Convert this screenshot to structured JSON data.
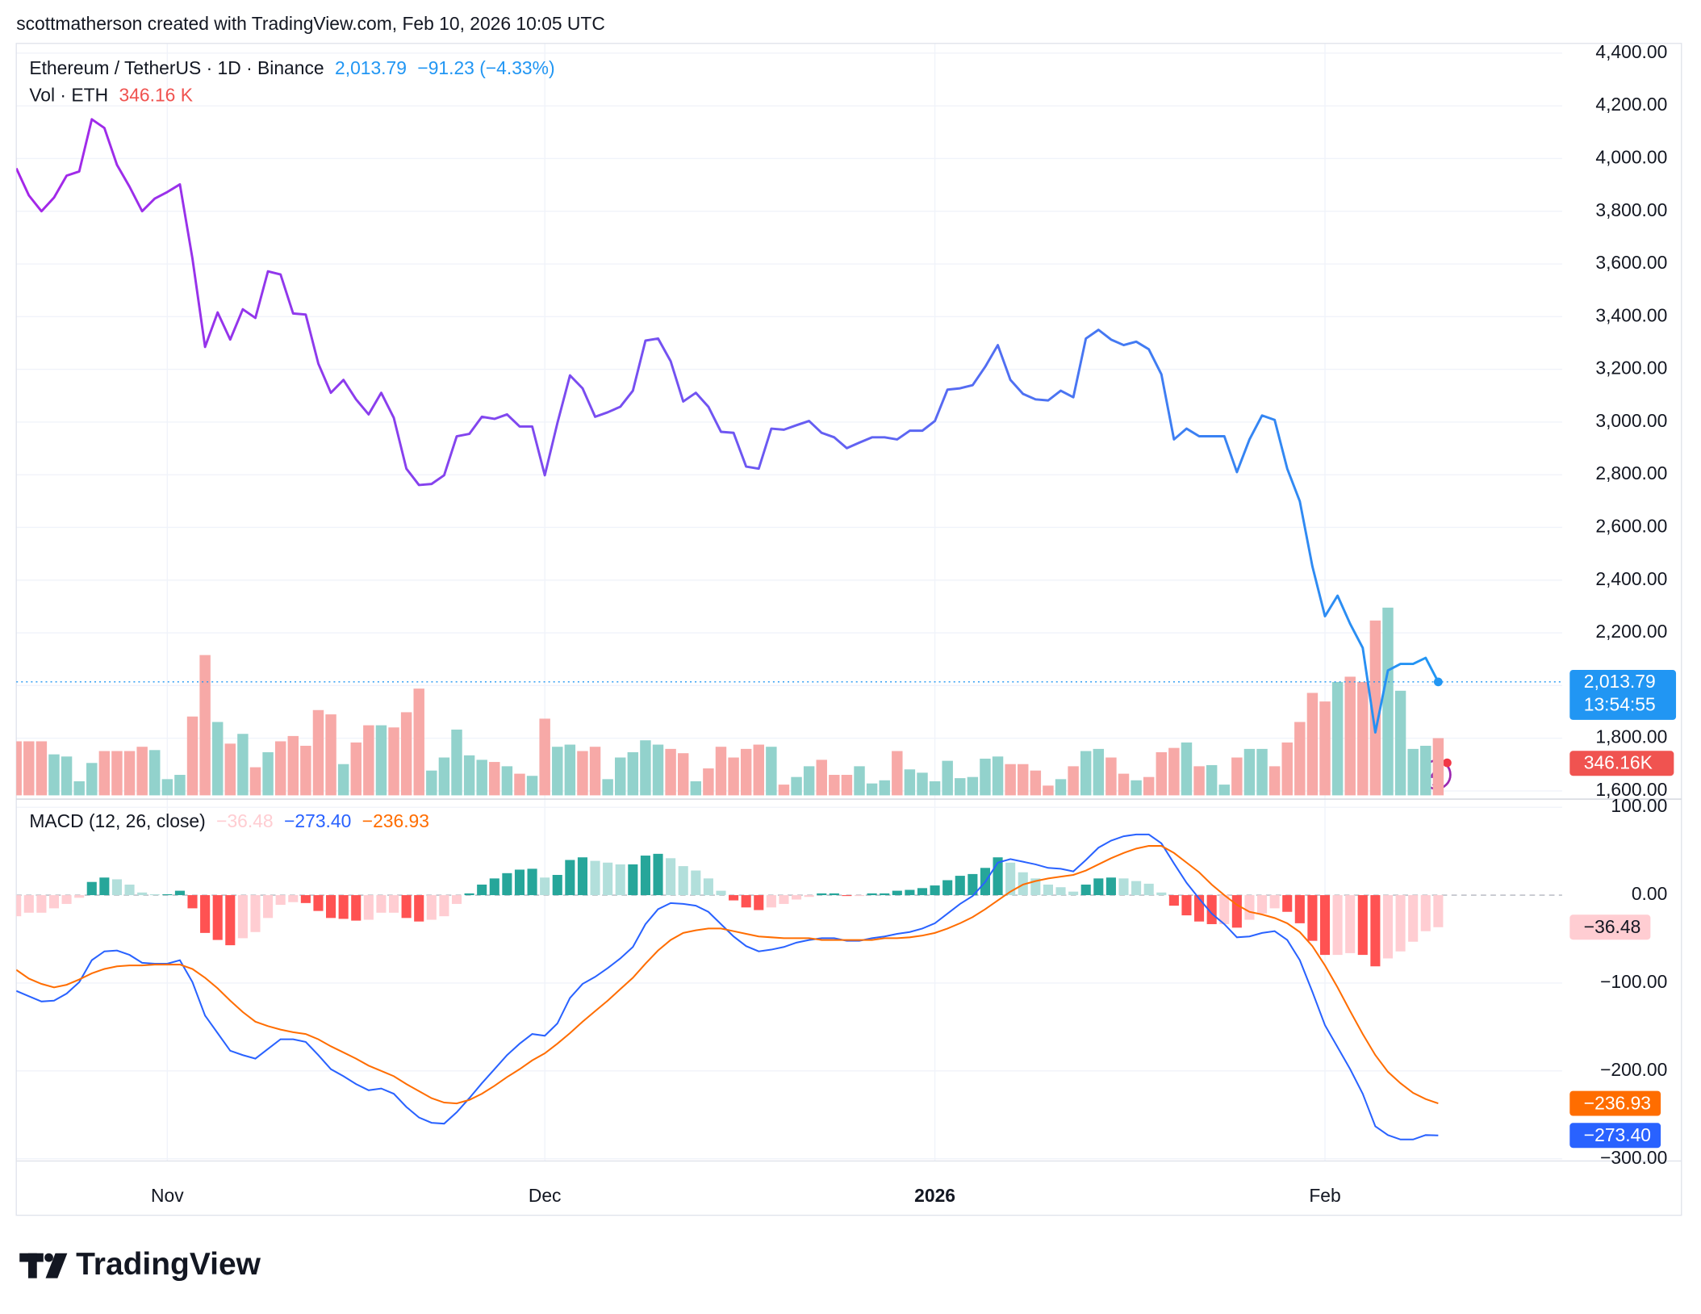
{
  "header": {
    "credit": "scottmatherson created with TradingView.com, Feb 10, 2026 10:05 UTC"
  },
  "footer": {
    "brand": "TradingView"
  },
  "chart_data": [
    {
      "type": "line",
      "change_label": "−91.23 (−4.33%)",
      "countdown": "13:54:55",
      "grid": true,
      "ylim": [
        1575,
        4437
      ],
      "yticks": [
        {
          "value": 1600,
          "label": "1,600.00"
        },
        {
          "value": 1800,
          "label": "1,800.00"
        },
        {
          "value": 2000,
          "label": "2,000.00"
        },
        {
          "value": 2200,
          "label": "2,200.00"
        },
        {
          "value": 2400,
          "label": "2,400.00"
        },
        {
          "value": 2600,
          "label": "2,600.00"
        },
        {
          "value": 2800,
          "label": "2,800.00"
        },
        {
          "value": 3000,
          "label": "3,000.00"
        },
        {
          "value": 3200,
          "label": "3,200.00"
        },
        {
          "value": 3400,
          "label": "3,400.00"
        },
        {
          "value": 3600,
          "label": "3,600.00"
        },
        {
          "value": 3800,
          "label": "3,800.00"
        },
        {
          "value": 4000,
          "label": "4,000.00"
        },
        {
          "value": 4200,
          "label": "4,200.00"
        },
        {
          "value": 4400,
          "label": "4,400.00"
        }
      ],
      "categories": [
        null,
        null,
        null,
        null,
        null,
        null,
        null,
        null,
        null,
        null,
        null,
        null,
        "Nov",
        null,
        null,
        null,
        null,
        null,
        null,
        null,
        null,
        null,
        null,
        null,
        null,
        null,
        null,
        null,
        null,
        null,
        null,
        null,
        null,
        null,
        null,
        null,
        null,
        null,
        null,
        null,
        null,
        null,
        "Dec",
        null,
        null,
        null,
        null,
        null,
        null,
        null,
        null,
        null,
        null,
        null,
        null,
        null,
        null,
        null,
        null,
        null,
        null,
        null,
        null,
        null,
        null,
        null,
        null,
        null,
        null,
        null,
        null,
        null,
        null,
        "2026",
        null,
        null,
        null,
        null,
        null,
        null,
        null,
        null,
        null,
        null,
        null,
        null,
        null,
        null,
        null,
        null,
        null,
        null,
        null,
        null,
        null,
        null,
        null,
        null,
        null,
        null,
        null,
        null,
        null,
        null,
        "Feb",
        null,
        null,
        null,
        null,
        null,
        null,
        null,
        null,
        null
      ],
      "series": [
        {
          "name": "Ethereum / TetherUS · 1D · Binance",
          "colors": [
            "#a526e8",
            "#6f56f2",
            "#2196f3"
          ],
          "last_label": "2,013.79",
          "values": [
            3963,
            3860,
            3800,
            3852,
            3935,
            3951,
            4149,
            4116,
            3976,
            3893,
            3800,
            3848,
            3873,
            3902,
            3620,
            3285,
            3416,
            3313,
            3428,
            3395,
            3572,
            3560,
            3412,
            3408,
            3222,
            3111,
            3160,
            3086,
            3029,
            3111,
            3016,
            2823,
            2761,
            2765,
            2798,
            2946,
            2955,
            3020,
            3012,
            3029,
            2983,
            2983,
            2798,
            2996,
            3177,
            3128,
            3020,
            3037,
            3058,
            3119,
            3309,
            3317,
            3231,
            3078,
            3111,
            3058,
            2963,
            2959,
            2831,
            2823,
            2975,
            2971,
            2988,
            3004,
            2959,
            2942,
            2901,
            2922,
            2942,
            2942,
            2934,
            2967,
            2967,
            3004,
            3123,
            3128,
            3140,
            3210,
            3292,
            3160,
            3107,
            3086,
            3082,
            3119,
            3094,
            3317,
            3350,
            3313,
            3292,
            3305,
            3276,
            3181,
            2934,
            2975,
            2946,
            2946,
            2946,
            2810,
            2934,
            3025,
            3008,
            2823,
            2699,
            2452,
            2263,
            2341,
            2234,
            2143,
            1822,
            2057,
            2082,
            2082,
            2105,
            2013.79
          ]
        },
        {
          "name": "Vol · ETH",
          "type": "bar",
          "colors": {
            "up": "#92d2cc",
            "down": "#f7a9a7"
          },
          "label_color": "#f05350",
          "last_label": "346.16K",
          "legend_label": "346.16 K",
          "values": [
            327000,
            327000,
            327000,
            248000,
            235000,
            85000,
            196000,
            268000,
            268000,
            268000,
            294000,
            274000,
            98000,
            124000,
            477000,
            849000,
            444000,
            313000,
            372000,
            170000,
            261000,
            327000,
            359000,
            300000,
            516000,
            490000,
            189000,
            320000,
            424000,
            424000,
            411000,
            503000,
            646000,
            150000,
            229000,
            398000,
            242000,
            215000,
            202000,
            176000,
            131000,
            118000,
            464000,
            294000,
            307000,
            268000,
            294000,
            98000,
            229000,
            261000,
            333000,
            307000,
            281000,
            255000,
            85000,
            163000,
            294000,
            229000,
            281000,
            307000,
            294000,
            65000,
            111000,
            176000,
            215000,
            124000,
            124000,
            176000,
            72000,
            91000,
            268000,
            157000,
            137000,
            85000,
            209000,
            104000,
            111000,
            222000,
            235000,
            189000,
            189000,
            150000,
            59000,
            98000,
            176000,
            268000,
            281000,
            229000,
            131000,
            91000,
            111000,
            261000,
            287000,
            320000,
            176000,
            183000,
            65000,
            229000,
            281000,
            281000,
            176000,
            320000,
            444000,
            620000,
            568000,
            686000,
            718000,
            686000,
            1058000,
            1136000,
            633000,
            281000,
            300000,
            346160
          ]
        }
      ]
    },
    {
      "type": "macd",
      "title": "MACD (12, 26, close)",
      "grid": true,
      "ylim": [
        -302.5,
        108.6
      ],
      "yticks": [
        {
          "value": 100,
          "label": "100.00"
        },
        {
          "value": 0,
          "label": "0.00"
        },
        {
          "value": -100,
          "label": "−100.00"
        },
        {
          "value": -200,
          "label": "−200.00"
        },
        {
          "value": -300,
          "label": "−300.00"
        }
      ],
      "histogram": {
        "colors": {
          "up_rising": "#26a69a",
          "up_falling": "#b2dfdb",
          "down_falling": "#ff5252",
          "down_rising": "#ffcdd2"
        },
        "last_label": "−36.48",
        "values": [
          -24,
          -20,
          -20,
          -15,
          -10,
          -3,
          15,
          20,
          18,
          12,
          3,
          1,
          1,
          5,
          -15,
          -43,
          -51,
          -57,
          -49,
          -42,
          -26,
          -11,
          -8,
          -9,
          -18,
          -26,
          -27,
          -29,
          -28,
          -20,
          -20,
          -26,
          -30,
          -28,
          -24,
          -10,
          2,
          12,
          19,
          25,
          29,
          30,
          20,
          23,
          40,
          43,
          39,
          37,
          35,
          35,
          45,
          47,
          42,
          33,
          28,
          19,
          5,
          -6,
          -14,
          -17,
          -14,
          -10,
          -5,
          -2,
          2,
          2,
          -1,
          -1,
          2,
          2,
          5,
          6,
          8,
          11,
          17,
          22,
          24,
          31,
          43,
          37,
          26,
          19,
          12,
          9,
          4,
          12,
          19,
          20,
          19,
          16,
          13,
          3,
          -12,
          -23,
          -30,
          -33,
          -33,
          -37,
          -28,
          -21,
          -15,
          -19,
          -32,
          -52,
          -68,
          -68,
          -66,
          -68,
          -81,
          -72,
          -64,
          -53,
          -41,
          -36.48
        ]
      },
      "series": [
        {
          "color": "#2962ff",
          "last_label": "−273.40",
          "values": [
            -109,
            -115,
            -121,
            -120,
            -112,
            -99,
            -74,
            -64,
            -63,
            -68,
            -77,
            -78,
            -78,
            -74,
            -99,
            -137,
            -157,
            -177,
            -182,
            -186,
            -175,
            -164,
            -164,
            -167,
            -182,
            -198,
            -206,
            -215,
            -222,
            -220,
            -226,
            -241,
            -253,
            -259,
            -260,
            -247,
            -231,
            -214,
            -198,
            -182,
            -169,
            -158,
            -160,
            -146,
            -117,
            -101,
            -93,
            -83,
            -72,
            -59,
            -33,
            -16,
            -9,
            -10,
            -12,
            -19,
            -33,
            -47,
            -58,
            -64,
            -62,
            -59,
            -54,
            -51,
            -49,
            -49,
            -52,
            -52,
            -49,
            -47,
            -44,
            -42,
            -38,
            -32,
            -21,
            -10,
            -1,
            15,
            37,
            41,
            38,
            35,
            31,
            30,
            27,
            40,
            54,
            62,
            67,
            69,
            69,
            59,
            36,
            14,
            -4,
            -21,
            -33,
            -48,
            -47,
            -43,
            -41,
            -51,
            -74,
            -110,
            -148,
            -173,
            -198,
            -226,
            -263,
            -273,
            -278,
            -278,
            -273,
            -273.4
          ]
        },
        {
          "color": "#ff6d00",
          "last_label": "−236.93",
          "values": [
            -85,
            -95,
            -101,
            -105,
            -102,
            -96,
            -89,
            -84,
            -81,
            -80,
            -80,
            -79,
            -79,
            -79,
            -84,
            -94,
            -106,
            -120,
            -133,
            -144,
            -149,
            -153,
            -156,
            -158,
            -164,
            -172,
            -179,
            -186,
            -194,
            -200,
            -206,
            -215,
            -223,
            -231,
            -236,
            -237,
            -233,
            -226,
            -217,
            -207,
            -198,
            -188,
            -180,
            -169,
            -157,
            -144,
            -132,
            -120,
            -107,
            -94,
            -78,
            -63,
            -51,
            -43,
            -40,
            -38,
            -38,
            -41,
            -44,
            -47,
            -48,
            -49,
            -49,
            -49,
            -51,
            -51,
            -51,
            -51,
            -51,
            -49,
            -49,
            -48,
            -46,
            -43,
            -38,
            -32,
            -25,
            -16,
            -6,
            4,
            12,
            16,
            19,
            21,
            23,
            28,
            35,
            42,
            48,
            53,
            56,
            56,
            48,
            37,
            26,
            12,
            0,
            -11,
            -19,
            -22,
            -26,
            -32,
            -42,
            -58,
            -80,
            -105,
            -132,
            -158,
            -182,
            -201,
            -214,
            -225,
            -232,
            -236.93
          ]
        }
      ]
    }
  ]
}
